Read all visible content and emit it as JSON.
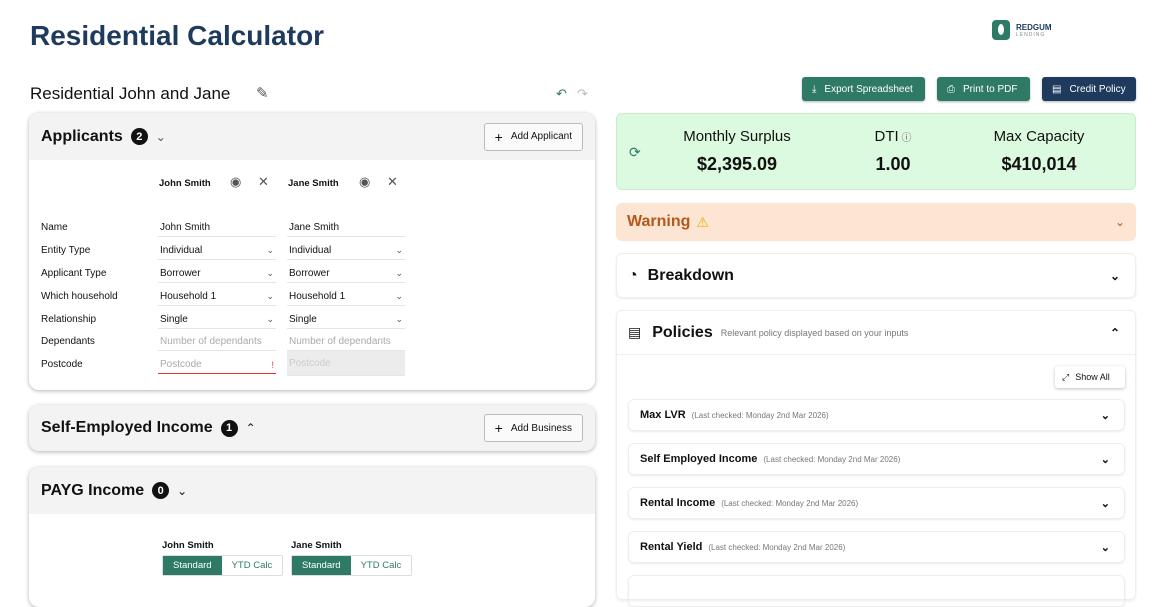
{
  "page": {
    "title": "Residential Calculator",
    "scenario_name": "Residential John and Jane"
  },
  "logo": {
    "name": "REDGUM",
    "tagline": "LENDING"
  },
  "toolbar": {
    "export": "Export Spreadsheet",
    "print": "Print to PDF",
    "credit": "Credit Policy"
  },
  "colors": {
    "primary": "#2f7a66",
    "navy": "#1e3a5c",
    "success_bg": "#dcfadf",
    "warning_bg": "#fce5d2",
    "warning_text": "#b5581c"
  },
  "applicants": {
    "title": "Applicants",
    "count": "2",
    "add": "Add Applicant",
    "columns": [
      "John Smith",
      "Jane Smith"
    ],
    "labels": [
      "Name",
      "Entity Type",
      "Applicant Type",
      "Which household",
      "Relationship",
      "Dependants",
      "Postcode"
    ],
    "values": [
      [
        "John Smith",
        "Individual",
        "Borrower",
        "Household 1",
        "Single"
      ],
      [
        "Jane Smith",
        "Individual",
        "Borrower",
        "Household 1",
        "Single"
      ]
    ],
    "dependants_placeholder": "Number of dependants",
    "postcode_placeholder": "Postcode",
    "error_mark": "!"
  },
  "self_employed": {
    "title": "Self-Employed Income",
    "count": "1",
    "add": "Add Business"
  },
  "payg": {
    "title": "PAYG Income",
    "count": "0",
    "people": [
      "John Smith",
      "Jane Smith"
    ],
    "standard": "Standard",
    "ytd": "YTD Calc"
  },
  "summary": {
    "surplus_label": "Monthly Surplus",
    "surplus": "$2,395.09",
    "dti_label": "DTI",
    "dti": "1.00",
    "capacity_label": "Max Capacity",
    "capacity": "$410,014"
  },
  "warning": {
    "title": "Warning"
  },
  "breakdown": {
    "title": "Breakdown"
  },
  "policies": {
    "title": "Policies",
    "subtitle": "Relevant policy displayed based on your inputs",
    "show_all": "Show All",
    "items": [
      {
        "name": "Max LVR",
        "checked": "(Last checked: Monday 2nd Mar 2026)"
      },
      {
        "name": "Self Employed Income",
        "checked": "(Last checked: Monday 2nd Mar 2026)"
      },
      {
        "name": "Rental Income",
        "checked": "(Last checked: Monday 2nd Mar 2026)"
      },
      {
        "name": "Rental Yield",
        "checked": "(Last checked: Monday 2nd Mar 2026)"
      }
    ]
  }
}
